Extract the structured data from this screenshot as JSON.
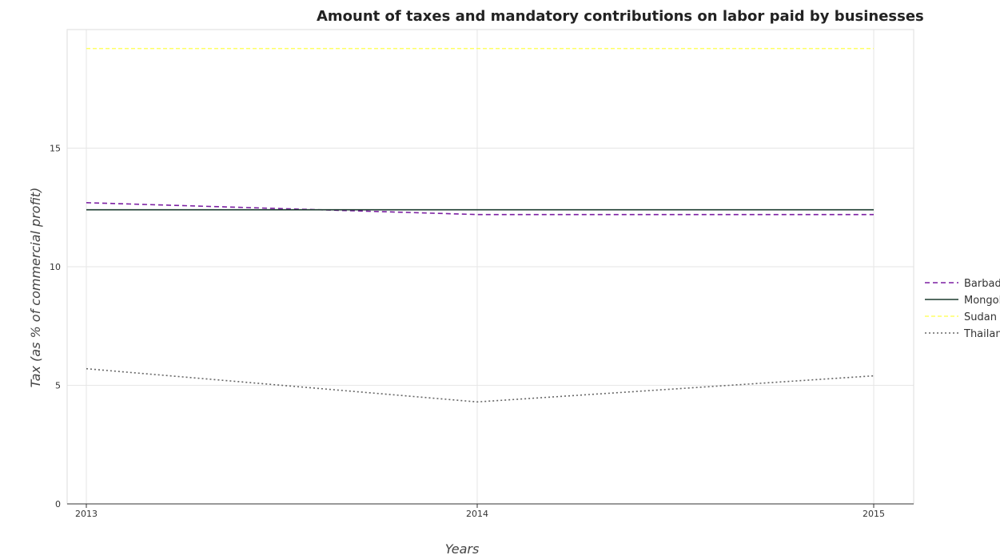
{
  "chart_data": {
    "type": "line",
    "title": "Amount of taxes and mandatory contributions on labor paid by businesses",
    "xlabel": "Years",
    "ylabel": "Tax (as % of commercial profit)",
    "x": [
      "2013",
      "2014",
      "2015"
    ],
    "ylim": [
      0,
      20
    ],
    "yticks": [
      "0",
      "5",
      "10",
      "15"
    ],
    "grid": true,
    "legend_position": "right",
    "series": [
      {
        "name": "Barbados",
        "values": [
          12.7,
          12.2,
          12.2
        ],
        "color": "#7b1fa2",
        "dash": "6,4"
      },
      {
        "name": "Mongolia",
        "values": [
          12.4,
          12.4,
          12.4
        ],
        "color": "#1b3b2f",
        "dash": ""
      },
      {
        "name": "Sudan",
        "values": [
          19.2,
          19.2,
          19.2
        ],
        "color": "#ffff66",
        "dash": "5,3"
      },
      {
        "name": "Thailand",
        "values": [
          5.7,
          4.3,
          5.4
        ],
        "color": "#666666",
        "dash": "2,3"
      }
    ]
  }
}
